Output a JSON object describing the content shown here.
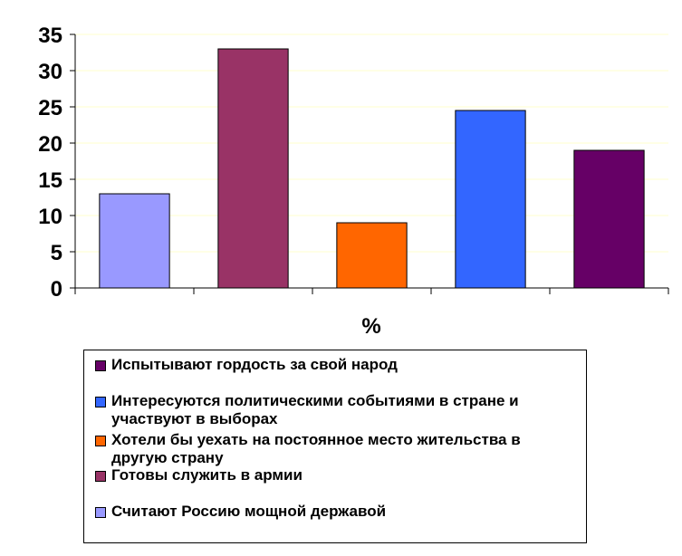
{
  "chart_data": {
    "type": "bar",
    "xlabel": "%",
    "ylim": [
      0,
      35
    ],
    "yticks": [
      0,
      5,
      10,
      15,
      20,
      25,
      30,
      35
    ],
    "grid": "horizontal",
    "legend_position": "bottom",
    "series": [
      {
        "name": "Считают Россию мощной державой",
        "value": 13,
        "color": "#9999FF"
      },
      {
        "name": "Готовы служить в армии",
        "value": 33,
        "color": "#993366"
      },
      {
        "name": "Хотели бы уехать на постоянное место жительства в другую страну",
        "value": 9,
        "color": "#FF6600"
      },
      {
        "name": "Интересуются политическими событиями в стране и участвуют в выборах",
        "value": 24.5,
        "color": "#3366FF"
      },
      {
        "name": "Испытывают гордость за свой народ",
        "value": 19,
        "color": "#660066"
      }
    ],
    "legend_order": [
      4,
      3,
      2,
      1,
      0
    ]
  }
}
